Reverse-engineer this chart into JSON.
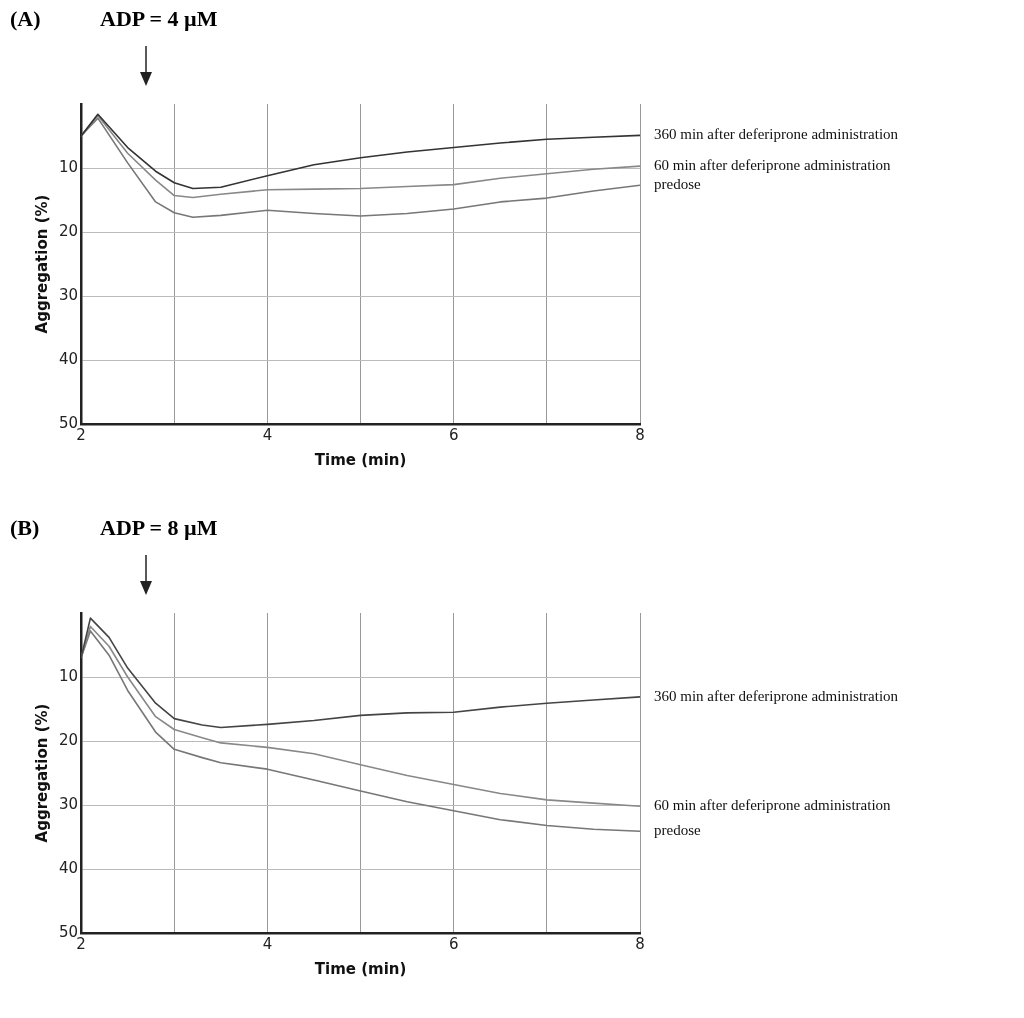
{
  "chart_data": [
    {
      "type": "line",
      "title": "(A)",
      "subtitle": "ADP = 4 µM",
      "xlabel": "Time (min)",
      "ylabel": "Aggregation (%)",
      "xlim": [
        2,
        8
      ],
      "xticks": [
        2,
        {
          "value": 3,
          "label": null
        },
        4,
        {
          "value": 5,
          "label": null
        },
        6,
        {
          "value": 7,
          "label": null
        },
        8
      ],
      "ylim": [
        50,
        0
      ],
      "yticks": [
        10,
        20,
        30,
        40,
        50
      ],
      "grid": true,
      "legend": false,
      "marker": "none",
      "line_style": "solid",
      "x": [
        2,
        2.18,
        2.5,
        2.8,
        3,
        3.2,
        3.5,
        4,
        4.5,
        5,
        5.5,
        6,
        6.5,
        7,
        7.5,
        8
      ],
      "series": [
        {
          "name": "360 min after deferiprone administration",
          "color": "#333333",
          "values": [
            5,
            1.6,
            6.8,
            10.5,
            12.3,
            13.2,
            13,
            11.2,
            9.5,
            8.4,
            7.5,
            6.8,
            6.1,
            5.5,
            5.2,
            4.9
          ]
        },
        {
          "name": "60 min after deferiprone administration",
          "color": "#888888",
          "values": [
            5,
            1.8,
            7.7,
            11.9,
            14.3,
            14.6,
            14.1,
            13.4,
            13.3,
            13.2,
            12.9,
            12.6,
            11.6,
            10.9,
            10.2,
            9.7
          ]
        },
        {
          "name": "predose",
          "color": "#777777",
          "values": [
            5,
            2.2,
            9.2,
            15.3,
            17,
            17.7,
            17.4,
            16.6,
            17.1,
            17.5,
            17.1,
            16.4,
            15.3,
            14.7,
            13.6,
            12.7
          ]
        }
      ]
    },
    {
      "type": "line",
      "title": "(B)",
      "subtitle": "ADP = 8 µM",
      "xlabel": "Time (min)",
      "ylabel": "Aggregation (%)",
      "xlim": [
        2,
        8
      ],
      "xticks": [
        2,
        {
          "value": 3,
          "label": null
        },
        4,
        {
          "value": 5,
          "label": null
        },
        6,
        {
          "value": 7,
          "label": null
        },
        8
      ],
      "ylim": [
        50,
        0
      ],
      "yticks": [
        10,
        20,
        30,
        40,
        50
      ],
      "grid": true,
      "legend": false,
      "marker": "none",
      "line_style": "solid",
      "x": [
        2,
        2.1,
        2.3,
        2.5,
        2.8,
        3,
        3.3,
        3.5,
        4,
        4.5,
        5,
        5.5,
        6,
        6.5,
        7,
        7.5,
        8
      ],
      "series": [
        {
          "name": "360 min after deferiprone administration",
          "color": "#444444",
          "values": [
            7,
            0.8,
            3.8,
            8.6,
            14.1,
            16.5,
            17.5,
            17.9,
            17.4,
            16.8,
            16,
            15.6,
            15.5,
            14.7,
            14.1,
            13.6,
            13.1
          ]
        },
        {
          "name": "60 min after deferiprone administration",
          "color": "#888888",
          "values": [
            7,
            2.1,
            5.2,
            10,
            16.2,
            18.2,
            19.5,
            20.3,
            21,
            22,
            23.7,
            25.4,
            26.8,
            28.2,
            29.2,
            29.7,
            30.2
          ]
        },
        {
          "name": "predose",
          "color": "#777777",
          "values": [
            7,
            2.8,
            6.6,
            12.1,
            18.6,
            21.3,
            22.6,
            23.4,
            24.4,
            26.1,
            27.8,
            29.5,
            30.9,
            32.3,
            33.2,
            33.8,
            34.1
          ]
        }
      ]
    }
  ]
}
